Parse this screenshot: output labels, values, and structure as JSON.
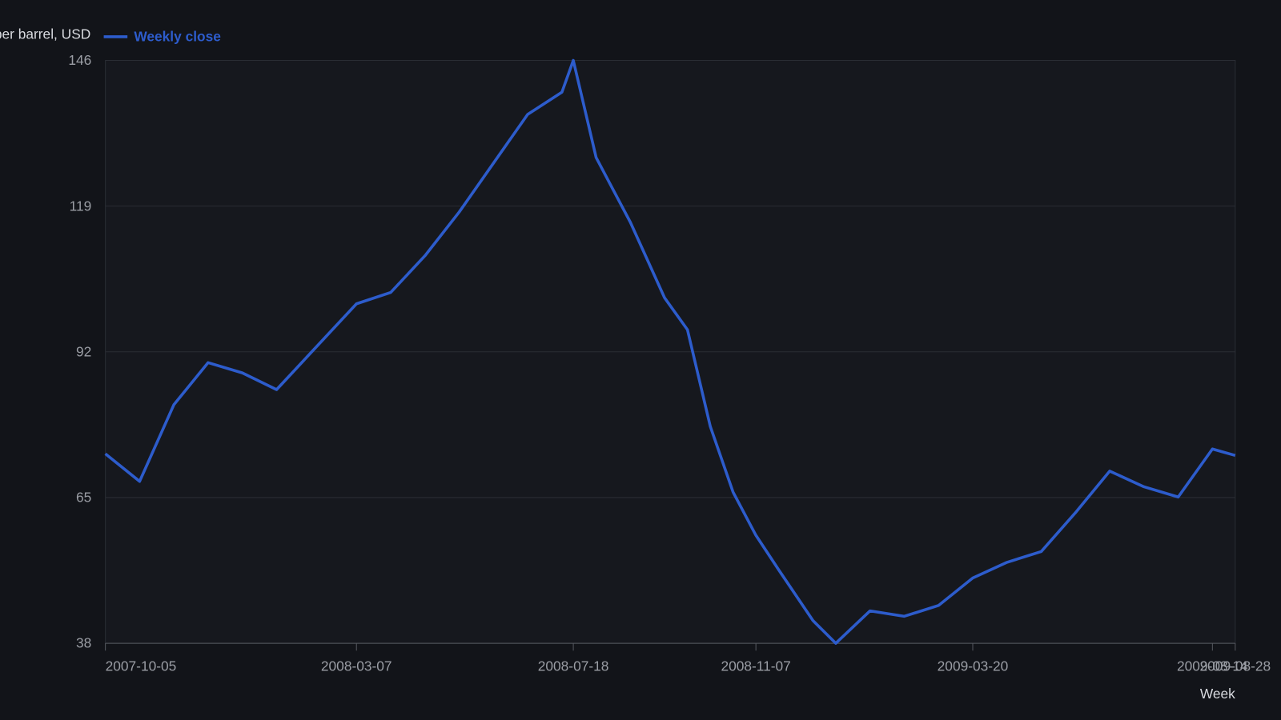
{
  "chart_data": {
    "type": "line",
    "y_label": "Price per barrel, USD",
    "x_label": "Week",
    "x": [
      "2007-10-05",
      "2007-10-26",
      "2007-11-16",
      "2007-12-07",
      "2007-12-28",
      "2008-01-18",
      "2008-03-07",
      "2008-03-28",
      "2008-04-18",
      "2008-05-09",
      "2008-06-20",
      "2008-07-11",
      "2008-07-18",
      "2008-08-01",
      "2008-08-22",
      "2008-09-12",
      "2008-09-26",
      "2008-10-10",
      "2008-10-24",
      "2008-11-07",
      "2008-11-21",
      "2008-12-12",
      "2008-12-26",
      "2009-01-16",
      "2009-02-06",
      "2009-02-27",
      "2009-03-20",
      "2009-04-10",
      "2009-05-01",
      "2009-05-22",
      "2009-06-12",
      "2009-07-03",
      "2009-07-24",
      "2009-08-14",
      "2009-08-28"
    ],
    "series": [
      {
        "name": "Weekly close",
        "color": "#2d5ccc",
        "values": [
          73.1,
          68.0,
          82.2,
          90.0,
          88.1,
          85.0,
          100.9,
          103.0,
          109.8,
          117.9,
          136.0,
          140.1,
          146.0,
          128.0,
          116.0,
          102.0,
          96.1,
          78.2,
          66.0,
          58.0,
          51.6,
          42.2,
          38.0,
          44.0,
          43.0,
          45.0,
          50.1,
          53.0,
          55.0,
          62.2,
          69.9,
          67.0,
          65.1,
          74.0,
          72.8
        ]
      }
    ],
    "xlim": [
      "2007-10-05",
      "2009-08-28"
    ],
    "xticks": [
      "2007-10-05",
      "2008-03-07",
      "2008-07-18",
      "2008-11-07",
      "2009-03-20",
      "2009-08-14",
      "2009-08-28"
    ],
    "ylim": [
      38,
      146
    ],
    "yticks": [
      38,
      65,
      92,
      119,
      146
    ],
    "grid": true
  }
}
